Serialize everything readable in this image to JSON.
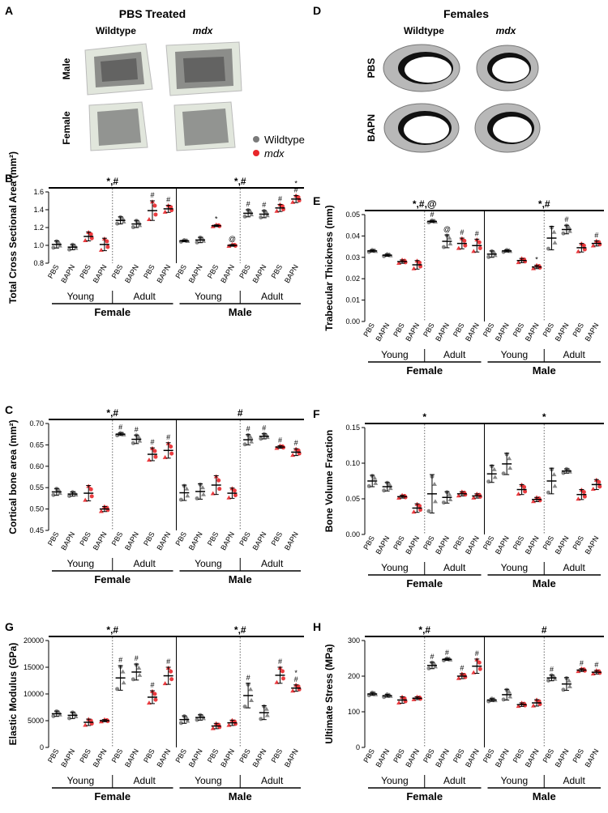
{
  "panels": {
    "A": {
      "letter": "A",
      "title": "PBS Treated",
      "col_labels": [
        "Wildtype",
        "mdx"
      ],
      "row_labels": [
        "Male",
        "Female"
      ]
    },
    "D": {
      "letter": "D",
      "title": "Females",
      "col_labels": [
        "Wildtype",
        "mdx"
      ],
      "row_labels": [
        "PBS",
        "BAPN"
      ]
    }
  },
  "legend": {
    "items": [
      {
        "label": "Wildtype",
        "color": "#7a7a7a"
      },
      {
        "label": "mdx",
        "color": "#e8262a"
      }
    ]
  },
  "groups": {
    "treatments": [
      "PBS",
      "BAPN"
    ],
    "ages": [
      "Young",
      "Adult"
    ],
    "sexes": [
      "Female",
      "Male"
    ]
  },
  "chart_data": [
    {
      "letter": "B",
      "type": "scatter",
      "ylabel": "Total Cross Sectional Area (mm²)",
      "ylim": [
        0.8,
        1.6
      ],
      "yticks": [
        "0.8",
        "1.0",
        "1.2",
        "1.4",
        "1.6"
      ],
      "sig": [
        "*,#",
        "*,#"
      ],
      "means": [
        1.01,
        0.98,
        1.1,
        1.01,
        1.28,
        1.24,
        1.39,
        1.41,
        1.05,
        1.06,
        1.22,
        1.0,
        1.36,
        1.35,
        1.42,
        1.52
      ],
      "errors": [
        0.04,
        0.03,
        0.05,
        0.07,
        0.04,
        0.04,
        0.11,
        0.04,
        0.01,
        0.03,
        0.01,
        0.01,
        0.04,
        0.04,
        0.04,
        0.04
      ],
      "marks": [
        "",
        "",
        "",
        "",
        "",
        "",
        "#",
        "#",
        "",
        "",
        "*",
        "@",
        "#",
        "#",
        "#",
        "*#"
      ]
    },
    {
      "letter": "C",
      "type": "scatter",
      "ylabel": "Cortical bone area (mm²)",
      "ylim": [
        0.45,
        0.7
      ],
      "yticks": [
        "0.45",
        "0.50",
        "0.55",
        "0.60",
        "0.65",
        "0.70"
      ],
      "sig": [
        "*,#",
        "#"
      ],
      "means": [
        0.54,
        0.535,
        0.537,
        0.5,
        0.675,
        0.663,
        0.628,
        0.637,
        0.538,
        0.541,
        0.556,
        0.537,
        0.662,
        0.67,
        0.645,
        0.633
      ],
      "errors": [
        0.008,
        0.005,
        0.018,
        0.006,
        0.003,
        0.01,
        0.015,
        0.018,
        0.018,
        0.018,
        0.022,
        0.012,
        0.012,
        0.006,
        0.003,
        0.008
      ],
      "marks": [
        "",
        "",
        "",
        "",
        "#",
        "#",
        "#",
        "#",
        "",
        "",
        "",
        "",
        "#",
        "#",
        "#",
        "#"
      ]
    },
    {
      "letter": "E",
      "type": "scatter",
      "ylabel": "Trabecular Thickness (mm)",
      "ylim": [
        0,
        0.05
      ],
      "yticks": [
        "0.00",
        "0.01",
        "0.02",
        "0.03",
        "0.04",
        "0.05"
      ],
      "sig": [
        "*,#,@",
        "*,#"
      ],
      "means": [
        0.033,
        0.031,
        0.028,
        0.0265,
        0.0468,
        0.0375,
        0.0365,
        0.0355,
        0.0315,
        0.033,
        0.0285,
        0.0255,
        0.039,
        0.043,
        0.0345,
        0.0365
      ],
      "errors": [
        0.0005,
        0.0005,
        0.0008,
        0.002,
        0.0005,
        0.003,
        0.0025,
        0.003,
        0.0015,
        0.0005,
        0.001,
        0.0008,
        0.0055,
        0.002,
        0.002,
        0.0012
      ],
      "marks": [
        "",
        "",
        "",
        "",
        "#",
        "@",
        "#",
        "#",
        "",
        "",
        "",
        "*",
        "",
        "#",
        "",
        "#"
      ]
    },
    {
      "letter": "F",
      "type": "scatter",
      "ylabel": "Bone Volume Fraction",
      "ylim": [
        0,
        0.15
      ],
      "yticks": [
        "0.00",
        "0.05",
        "0.10",
        "0.15"
      ],
      "sig": [
        "*",
        "*"
      ],
      "means": [
        0.075,
        0.067,
        0.053,
        0.037,
        0.057,
        0.052,
        0.057,
        0.054,
        0.085,
        0.099,
        0.063,
        0.049,
        0.075,
        0.089,
        0.056,
        0.07
      ],
      "errors": [
        0.008,
        0.006,
        0.002,
        0.006,
        0.027,
        0.008,
        0.003,
        0.003,
        0.012,
        0.015,
        0.007,
        0.003,
        0.018,
        0.003,
        0.007,
        0.007
      ],
      "marks": [
        "",
        "",
        "",
        "",
        "",
        "",
        "",
        "",
        "",
        "",
        "",
        "",
        "",
        "",
        "",
        ""
      ]
    },
    {
      "letter": "G",
      "type": "scatter",
      "ylabel": "Elastic Modulus (GPa)",
      "ylim": [
        0,
        20000
      ],
      "yticks": [
        "0",
        "5000",
        "10000",
        "15000",
        "20000"
      ],
      "sig": [
        "*,#",
        "*,#"
      ],
      "means": [
        6300,
        6000,
        4700,
        5000,
        13000,
        14100,
        9400,
        13400,
        5200,
        5600,
        4000,
        4600,
        9700,
        6500,
        13500,
        11100
      ],
      "errors": [
        500,
        600,
        600,
        200,
        2300,
        1500,
        1200,
        1600,
        700,
        500,
        500,
        500,
        2300,
        1300,
        1500,
        600
      ],
      "marks": [
        "",
        "",
        "",
        "",
        "#",
        "#",
        "#",
        "#",
        "",
        "",
        "",
        "",
        "#",
        "",
        "#",
        "*#"
      ]
    },
    {
      "letter": "H",
      "type": "scatter",
      "ylabel": "Ultimate Stress (MPa)",
      "ylim": [
        0,
        300
      ],
      "yticks": [
        "0",
        "100",
        "200",
        "300"
      ],
      "sig": [
        "*,#",
        "#"
      ],
      "means": [
        150,
        145,
        133,
        138,
        230,
        247,
        200,
        228,
        133,
        148,
        120,
        125,
        195,
        178,
        217,
        211
      ],
      "errors": [
        4,
        4,
        9,
        4,
        9,
        3,
        7,
        20,
        4,
        15,
        5,
        9,
        8,
        18,
        4,
        5
      ],
      "marks": [
        "",
        "",
        "",
        "",
        "#",
        "#",
        "#",
        "#",
        "",
        "",
        "",
        "",
        "#",
        "",
        "#",
        "#"
      ]
    }
  ]
}
